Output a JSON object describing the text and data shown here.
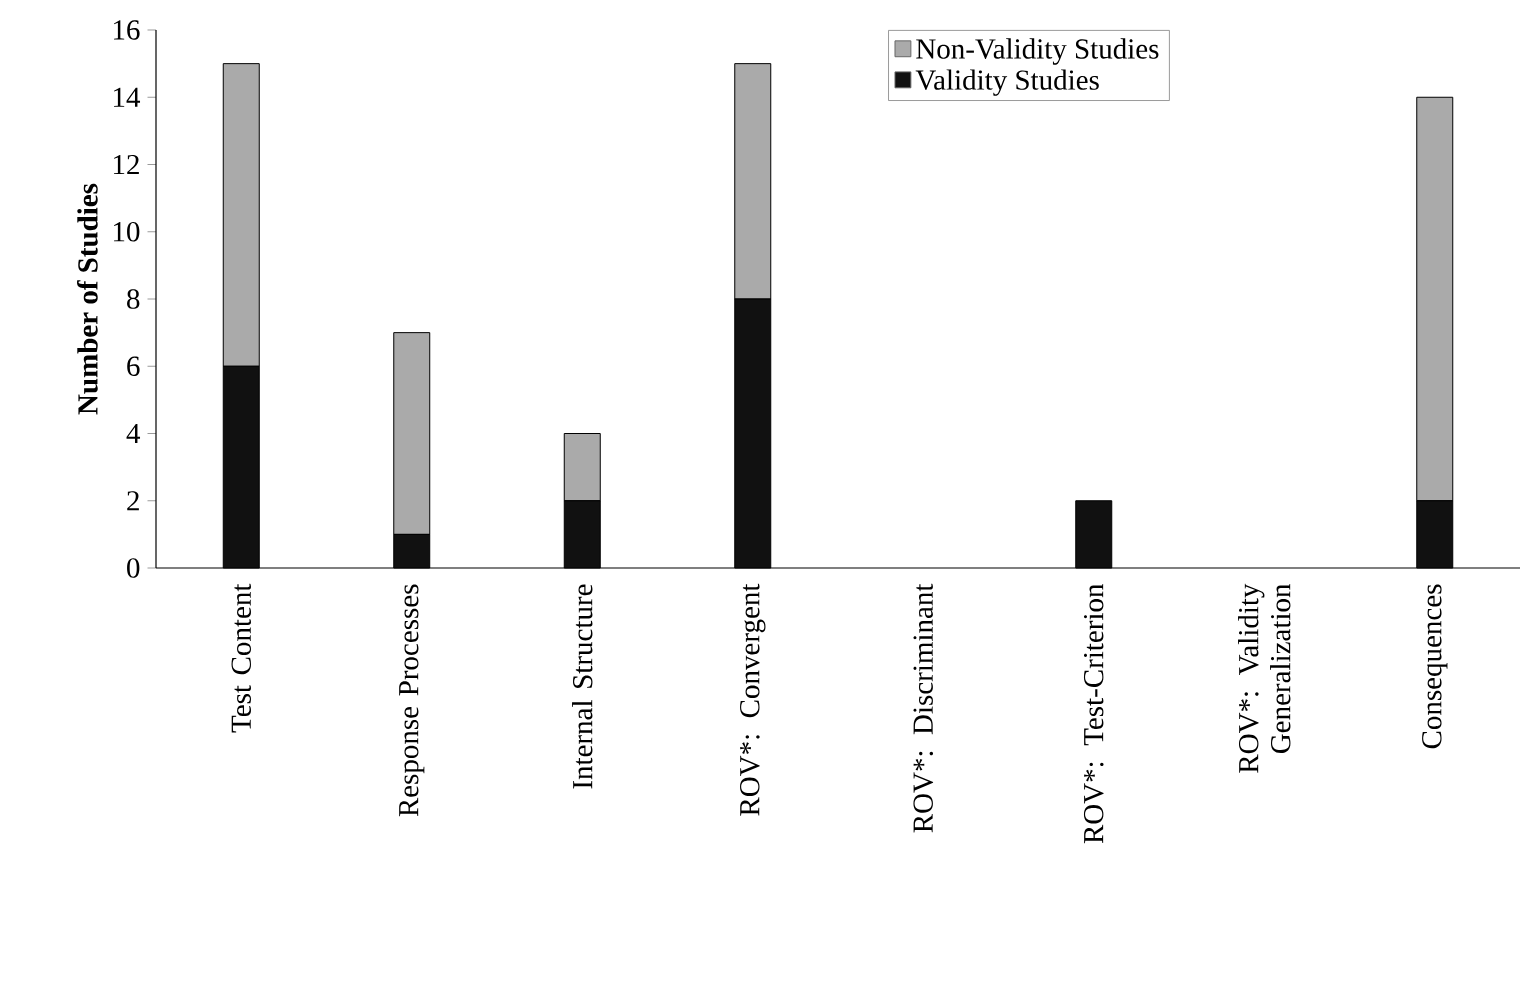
{
  "chart_data": {
    "type": "bar",
    "stacked": true,
    "ylabel": "Number of Studies",
    "categories": [
      "Test Content",
      "Response Processes",
      "Internal Structure",
      "ROV*: Convergent",
      "ROV*: Discriminant",
      "ROV*: Test-Criterion",
      "ROV*: Validity Generalization",
      "Consequences"
    ],
    "series": [
      {
        "name": "Validity Studies",
        "color": "#111111",
        "values": [
          6,
          1,
          2,
          8,
          0,
          2,
          0,
          2
        ]
      },
      {
        "name": "Non-Validity Studies",
        "color": "#aaaaaa",
        "values": [
          9,
          6,
          2,
          7,
          0,
          0,
          0,
          12
        ]
      }
    ],
    "ylim": [
      0,
      16
    ],
    "yticks": [
      0,
      2,
      4,
      6,
      8,
      10,
      12,
      14,
      16
    ],
    "grid": false,
    "legend": "top"
  }
}
